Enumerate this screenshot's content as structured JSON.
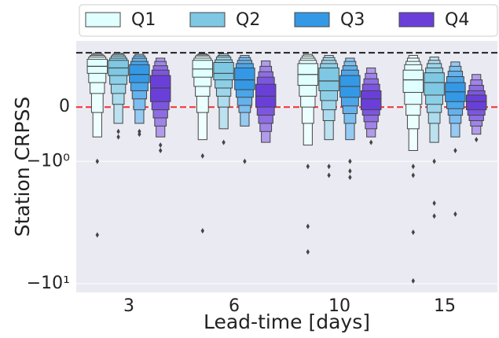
{
  "chart_data": {
    "type": "boxen",
    "x_label": "Lead-time [days]",
    "y_label": "Station CRPSS",
    "categories": [
      "3",
      "6",
      "10",
      "15"
    ],
    "yscale": "symlog",
    "linthresh": 1,
    "linscale": 0.4,
    "ylim": [
      -11.8,
      1.25
    ],
    "yticks": [
      0,
      {
        "value": -1,
        "label": "−10⁰"
      },
      {
        "value": -10,
        "label": "−10¹"
      }
    ],
    "grid": true,
    "legend": "top",
    "hlines": [
      {
        "value": 1,
        "color": "#222222"
      },
      {
        "value": 0,
        "color": "#f03030"
      }
    ],
    "series": [
      {
        "name": "Q1",
        "color": "#e0ffff",
        "values": [
          {
            "median": 0.75,
            "boxes": [
              [
                0.62,
                0.88
              ],
              [
                0.45,
                0.92
              ],
              [
                0.25,
                0.95
              ],
              [
                -0.1,
                0.97
              ],
              [
                -0.55,
                0.99
              ]
            ],
            "outliers": [
              -1,
              -4
            ]
          },
          {
            "median": 0.7,
            "boxes": [
              [
                0.55,
                0.86
              ],
              [
                0.38,
                0.9
              ],
              [
                0.2,
                0.94
              ],
              [
                -0.1,
                0.96
              ],
              [
                -0.6,
                0.98
              ]
            ],
            "outliers": [
              -0.9,
              -3.7
            ]
          },
          {
            "median": 0.6,
            "boxes": [
              [
                0.4,
                0.8
              ],
              [
                0.2,
                0.86
              ],
              [
                0,
                0.9
              ],
              [
                -0.3,
                0.94
              ],
              [
                -0.7,
                0.97
              ]
            ],
            "outliers": [
              -1.1,
              -3.4,
              -5.5
            ]
          },
          {
            "median": 0.5,
            "boxes": [
              [
                0.27,
                0.68
              ],
              [
                0.05,
                0.78
              ],
              [
                -0.15,
                0.84
              ],
              [
                -0.4,
                0.9
              ],
              [
                -0.8,
                0.95
              ]
            ],
            "outliers": [
              -1.1,
              -1.3,
              -3.8,
              -9.5
            ]
          }
        ]
      },
      {
        "name": "Q2",
        "color": "#7ec8e3",
        "values": [
          {
            "median": 0.72,
            "boxes": [
              [
                0.58,
                0.86
              ],
              [
                0.42,
                0.9
              ],
              [
                0.25,
                0.94
              ],
              [
                0.05,
                0.97
              ],
              [
                -0.3,
                0.99
              ]
            ],
            "outliers": [
              -0.45,
              -0.55
            ]
          },
          {
            "median": 0.62,
            "boxes": [
              [
                0.5,
                0.82
              ],
              [
                0.35,
                0.87
              ],
              [
                0.2,
                0.92
              ],
              [
                0,
                0.95
              ],
              [
                -0.4,
                0.98
              ]
            ],
            "outliers": [
              -0.65
            ]
          },
          {
            "median": 0.48,
            "boxes": [
              [
                0.3,
                0.72
              ],
              [
                0.12,
                0.8
              ],
              [
                -0.05,
                0.86
              ],
              [
                -0.25,
                0.91
              ],
              [
                -0.6,
                0.95
              ]
            ],
            "outliers": [
              -1.1,
              -1.3
            ]
          },
          {
            "median": 0.45,
            "boxes": [
              [
                0.22,
                0.63
              ],
              [
                0.05,
                0.72
              ],
              [
                -0.1,
                0.8
              ],
              [
                -0.3,
                0.86
              ],
              [
                -0.65,
                0.92
              ]
            ],
            "outliers": [
              -1,
              -2.2,
              -2.8
            ]
          }
        ]
      },
      {
        "name": "Q3",
        "color": "#3399e6",
        "values": [
          {
            "median": 0.6,
            "boxes": [
              [
                0.45,
                0.78
              ],
              [
                0.3,
                0.84
              ],
              [
                0.15,
                0.9
              ],
              [
                -0.05,
                0.94
              ],
              [
                -0.3,
                0.97
              ]
            ],
            "outliers": [
              -0.45,
              -0.5
            ]
          },
          {
            "median": 0.5,
            "boxes": [
              [
                0.32,
                0.72
              ],
              [
                0.18,
                0.8
              ],
              [
                0.03,
                0.86
              ],
              [
                -0.1,
                0.91
              ],
              [
                -0.35,
                0.95
              ]
            ],
            "outliers": [
              -1
            ]
          },
          {
            "median": 0.38,
            "boxes": [
              [
                0.18,
                0.58
              ],
              [
                0.02,
                0.68
              ],
              [
                -0.12,
                0.76
              ],
              [
                -0.3,
                0.84
              ],
              [
                -0.6,
                0.9
              ]
            ],
            "outliers": [
              -1,
              -1.2,
              -1.35
            ]
          },
          {
            "median": 0.28,
            "boxes": [
              [
                0.1,
                0.45
              ],
              [
                -0.03,
                0.56
              ],
              [
                -0.15,
                0.66
              ],
              [
                -0.3,
                0.75
              ],
              [
                -0.55,
                0.83
              ]
            ],
            "outliers": [
              -0.8,
              -2.7
            ]
          }
        ]
      },
      {
        "name": "Q4",
        "color": "#6a3fd9",
        "values": [
          {
            "median": 0.35,
            "boxes": [
              [
                0.1,
                0.58
              ],
              [
                -0.05,
                0.68
              ],
              [
                -0.2,
                0.76
              ],
              [
                -0.35,
                0.84
              ],
              [
                -0.55,
                0.9
              ]
            ],
            "outliers": [
              -0.7,
              -0.8
            ]
          },
          {
            "median": 0.2,
            "boxes": [
              [
                0,
                0.42
              ],
              [
                -0.15,
                0.55
              ],
              [
                -0.3,
                0.65
              ],
              [
                -0.45,
                0.75
              ],
              [
                -0.65,
                0.85
              ]
            ],
            "outliers": []
          },
          {
            "median": 0.15,
            "boxes": [
              [
                -0.05,
                0.3
              ],
              [
                -0.15,
                0.42
              ],
              [
                -0.27,
                0.52
              ],
              [
                -0.4,
                0.62
              ],
              [
                -0.55,
                0.72
              ]
            ],
            "outliers": [
              -0.65
            ]
          },
          {
            "median": 0.1,
            "boxes": [
              [
                -0.05,
                0.22
              ],
              [
                -0.15,
                0.3
              ],
              [
                -0.25,
                0.4
              ],
              [
                -0.35,
                0.5
              ],
              [
                -0.5,
                0.6
              ]
            ],
            "outliers": [
              -0.6
            ]
          }
        ]
      }
    ]
  }
}
